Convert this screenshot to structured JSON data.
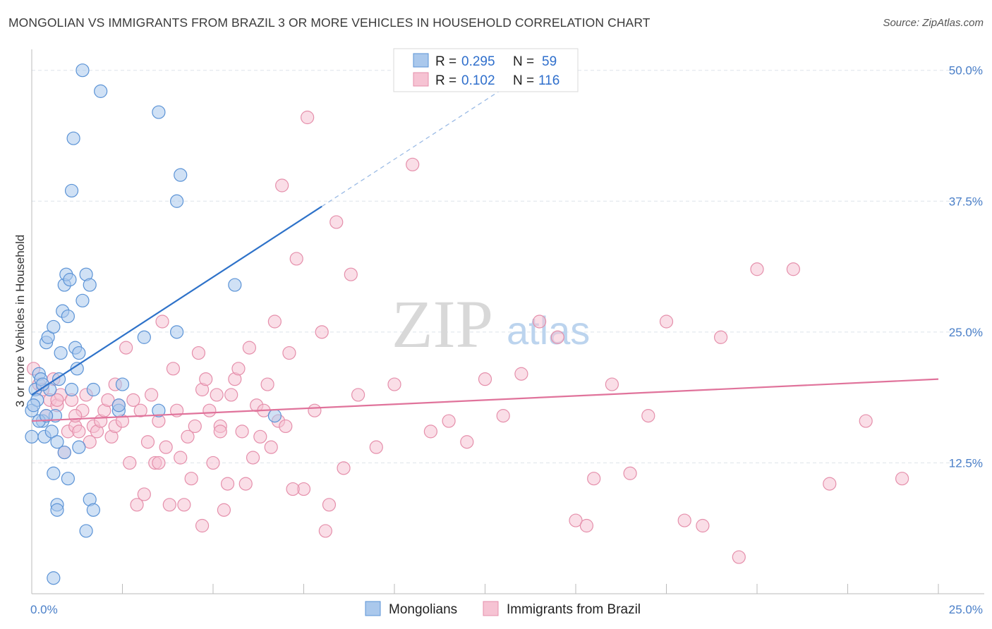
{
  "title": "MONGOLIAN VS IMMIGRANTS FROM BRAZIL 3 OR MORE VEHICLES IN HOUSEHOLD CORRELATION CHART",
  "source": "Source: ZipAtlas.com",
  "watermark": {
    "zip": "ZIP",
    "atlas": "atlas"
  },
  "colors": {
    "blue_fill": "#aac8ec",
    "blue_stroke": "#5b93d6",
    "blue_line": "#2e72c9",
    "pink_fill": "#f6c3d3",
    "pink_stroke": "#e58fab",
    "pink_line": "#e0739b",
    "grid": "#dde3ea",
    "tick_text": "#4a7fc8"
  },
  "legend": {
    "rows": [
      {
        "r_label": "R =",
        "r_value": "0.295",
        "n_label": "N =",
        "n_value": "59"
      },
      {
        "r_label": "R =",
        "r_value": "0.102",
        "n_label": "N =",
        "n_value": "116"
      }
    ]
  },
  "chart_data": {
    "type": "scatter",
    "xlabel": "",
    "ylabel": "3 or more Vehicles in Household",
    "xlim": [
      0,
      25
    ],
    "ylim": [
      0,
      52
    ],
    "x_tick_labels": [
      "0.0%",
      "25.0%"
    ],
    "y_ticks": [
      12.5,
      25.0,
      37.5,
      50.0
    ],
    "y_tick_labels": [
      "12.5%",
      "25.0%",
      "37.5%",
      "50.0%"
    ],
    "grid": true,
    "legend_position": "top-center",
    "series": [
      {
        "name": "Mongolians",
        "r": 0.295,
        "n": 59,
        "trend": {
          "x0": 0.0,
          "y0": 19.0,
          "x1": 8.0,
          "y1": 37.0,
          "dashed_to_x": 13.0
        },
        "points": [
          [
            0.0,
            17.5
          ],
          [
            0.0,
            15.0
          ],
          [
            0.1,
            19.5
          ],
          [
            0.15,
            18.5
          ],
          [
            0.2,
            21.0
          ],
          [
            0.25,
            20.5
          ],
          [
            0.3,
            16.5
          ],
          [
            0.35,
            15.0
          ],
          [
            0.4,
            24.0
          ],
          [
            0.45,
            24.5
          ],
          [
            0.5,
            19.5
          ],
          [
            0.55,
            15.5
          ],
          [
            0.6,
            25.5
          ],
          [
            0.65,
            17.0
          ],
          [
            0.7,
            14.5
          ],
          [
            0.75,
            20.5
          ],
          [
            0.8,
            23.0
          ],
          [
            0.85,
            27.0
          ],
          [
            0.9,
            29.5
          ],
          [
            0.95,
            30.5
          ],
          [
            1.0,
            26.5
          ],
          [
            1.05,
            30.0
          ],
          [
            1.1,
            38.5
          ],
          [
            1.15,
            43.5
          ],
          [
            1.2,
            23.5
          ],
          [
            1.25,
            21.5
          ],
          [
            1.3,
            23.0
          ],
          [
            1.4,
            28.0
          ],
          [
            1.5,
            30.5
          ],
          [
            1.6,
            29.5
          ],
          [
            1.4,
            50.0
          ],
          [
            1.9,
            48.0
          ],
          [
            2.4,
            17.5
          ],
          [
            3.1,
            24.5
          ],
          [
            3.5,
            17.5
          ],
          [
            4.0,
            25.0
          ],
          [
            3.5,
            46.0
          ],
          [
            4.1,
            40.0
          ],
          [
            4.0,
            37.5
          ],
          [
            5.6,
            29.5
          ],
          [
            6.7,
            17.0
          ],
          [
            0.6,
            11.5
          ],
          [
            1.0,
            11.0
          ],
          [
            0.7,
            8.5
          ],
          [
            0.7,
            8.0
          ],
          [
            1.6,
            9.0
          ],
          [
            1.7,
            8.0
          ],
          [
            1.5,
            6.0
          ],
          [
            0.6,
            1.5
          ],
          [
            0.2,
            16.5
          ],
          [
            0.9,
            13.5
          ],
          [
            1.3,
            14.0
          ],
          [
            2.4,
            18.0
          ],
          [
            2.5,
            20.0
          ],
          [
            1.1,
            19.5
          ],
          [
            0.05,
            18.0
          ],
          [
            0.3,
            20.0
          ],
          [
            1.7,
            19.5
          ],
          [
            0.4,
            17.0
          ]
        ]
      },
      {
        "name": "Immigrants from Brazil",
        "r": 0.102,
        "n": 116,
        "trend": {
          "x0": 0.0,
          "y0": 16.5,
          "x1": 25.0,
          "y1": 20.5
        },
        "points": [
          [
            0.05,
            21.5
          ],
          [
            0.2,
            20.0
          ],
          [
            0.3,
            19.5
          ],
          [
            0.4,
            17.0
          ],
          [
            0.5,
            18.5
          ],
          [
            0.6,
            20.5
          ],
          [
            0.7,
            18.0
          ],
          [
            0.8,
            19.0
          ],
          [
            0.9,
            13.5
          ],
          [
            1.0,
            15.5
          ],
          [
            1.1,
            18.5
          ],
          [
            1.2,
            16.0
          ],
          [
            1.3,
            15.5
          ],
          [
            1.4,
            17.5
          ],
          [
            1.5,
            19.0
          ],
          [
            1.6,
            14.5
          ],
          [
            1.7,
            16.0
          ],
          [
            1.8,
            15.5
          ],
          [
            1.9,
            16.5
          ],
          [
            2.0,
            17.5
          ],
          [
            2.1,
            18.5
          ],
          [
            2.2,
            15.0
          ],
          [
            2.3,
            16.0
          ],
          [
            2.4,
            18.0
          ],
          [
            2.5,
            16.5
          ],
          [
            2.6,
            23.5
          ],
          [
            2.7,
            12.5
          ],
          [
            2.8,
            18.5
          ],
          [
            2.9,
            8.5
          ],
          [
            3.0,
            17.5
          ],
          [
            3.1,
            9.5
          ],
          [
            3.2,
            14.5
          ],
          [
            3.3,
            19.0
          ],
          [
            3.4,
            12.5
          ],
          [
            3.5,
            16.5
          ],
          [
            3.6,
            26.0
          ],
          [
            3.7,
            14.0
          ],
          [
            3.8,
            8.5
          ],
          [
            3.9,
            21.5
          ],
          [
            4.0,
            17.5
          ],
          [
            4.1,
            13.0
          ],
          [
            4.2,
            8.5
          ],
          [
            4.3,
            15.0
          ],
          [
            4.4,
            11.0
          ],
          [
            4.5,
            16.0
          ],
          [
            4.6,
            23.0
          ],
          [
            4.7,
            19.5
          ],
          [
            4.8,
            20.5
          ],
          [
            4.9,
            17.5
          ],
          [
            5.0,
            12.5
          ],
          [
            5.1,
            19.0
          ],
          [
            5.2,
            16.0
          ],
          [
            5.3,
            8.0
          ],
          [
            5.4,
            10.5
          ],
          [
            5.5,
            19.0
          ],
          [
            5.6,
            20.5
          ],
          [
            5.7,
            21.5
          ],
          [
            5.8,
            15.5
          ],
          [
            5.9,
            10.5
          ],
          [
            6.0,
            23.5
          ],
          [
            6.1,
            13.0
          ],
          [
            6.2,
            18.0
          ],
          [
            6.3,
            15.0
          ],
          [
            6.4,
            17.5
          ],
          [
            6.5,
            20.0
          ],
          [
            6.6,
            14.0
          ],
          [
            6.7,
            26.0
          ],
          [
            6.8,
            16.5
          ],
          [
            6.9,
            39.0
          ],
          [
            7.0,
            16.0
          ],
          [
            7.1,
            23.0
          ],
          [
            7.3,
            32.0
          ],
          [
            7.5,
            10.0
          ],
          [
            7.6,
            45.5
          ],
          [
            7.8,
            17.5
          ],
          [
            8.0,
            25.0
          ],
          [
            8.2,
            8.5
          ],
          [
            8.4,
            35.5
          ],
          [
            8.6,
            12.0
          ],
          [
            8.8,
            30.5
          ],
          [
            9.0,
            19.0
          ],
          [
            9.5,
            14.0
          ],
          [
            10.0,
            20.0
          ],
          [
            10.5,
            41.0
          ],
          [
            11.0,
            15.5
          ],
          [
            11.5,
            16.5
          ],
          [
            12.0,
            14.5
          ],
          [
            12.5,
            20.5
          ],
          [
            13.0,
            17.0
          ],
          [
            13.5,
            21.0
          ],
          [
            14.0,
            26.0
          ],
          [
            14.5,
            24.5
          ],
          [
            15.0,
            7.0
          ],
          [
            15.3,
            6.5
          ],
          [
            15.5,
            11.0
          ],
          [
            16.0,
            20.0
          ],
          [
            16.5,
            11.5
          ],
          [
            17.0,
            17.0
          ],
          [
            17.5,
            26.0
          ],
          [
            18.0,
            7.0
          ],
          [
            18.5,
            6.5
          ],
          [
            19.0,
            24.5
          ],
          [
            19.5,
            3.5
          ],
          [
            20.0,
            31.0
          ],
          [
            21.0,
            31.0
          ],
          [
            22.0,
            10.5
          ],
          [
            23.0,
            16.5
          ],
          [
            24.0,
            11.0
          ],
          [
            0.7,
            18.5
          ],
          [
            1.2,
            17.0
          ],
          [
            2.3,
            20.0
          ],
          [
            4.7,
            6.5
          ],
          [
            7.2,
            10.0
          ],
          [
            8.1,
            6.0
          ],
          [
            3.5,
            12.5
          ],
          [
            5.2,
            15.5
          ]
        ]
      }
    ]
  },
  "bottom_legend": [
    {
      "label": "Mongolians"
    },
    {
      "label": "Immigrants from Brazil"
    }
  ]
}
